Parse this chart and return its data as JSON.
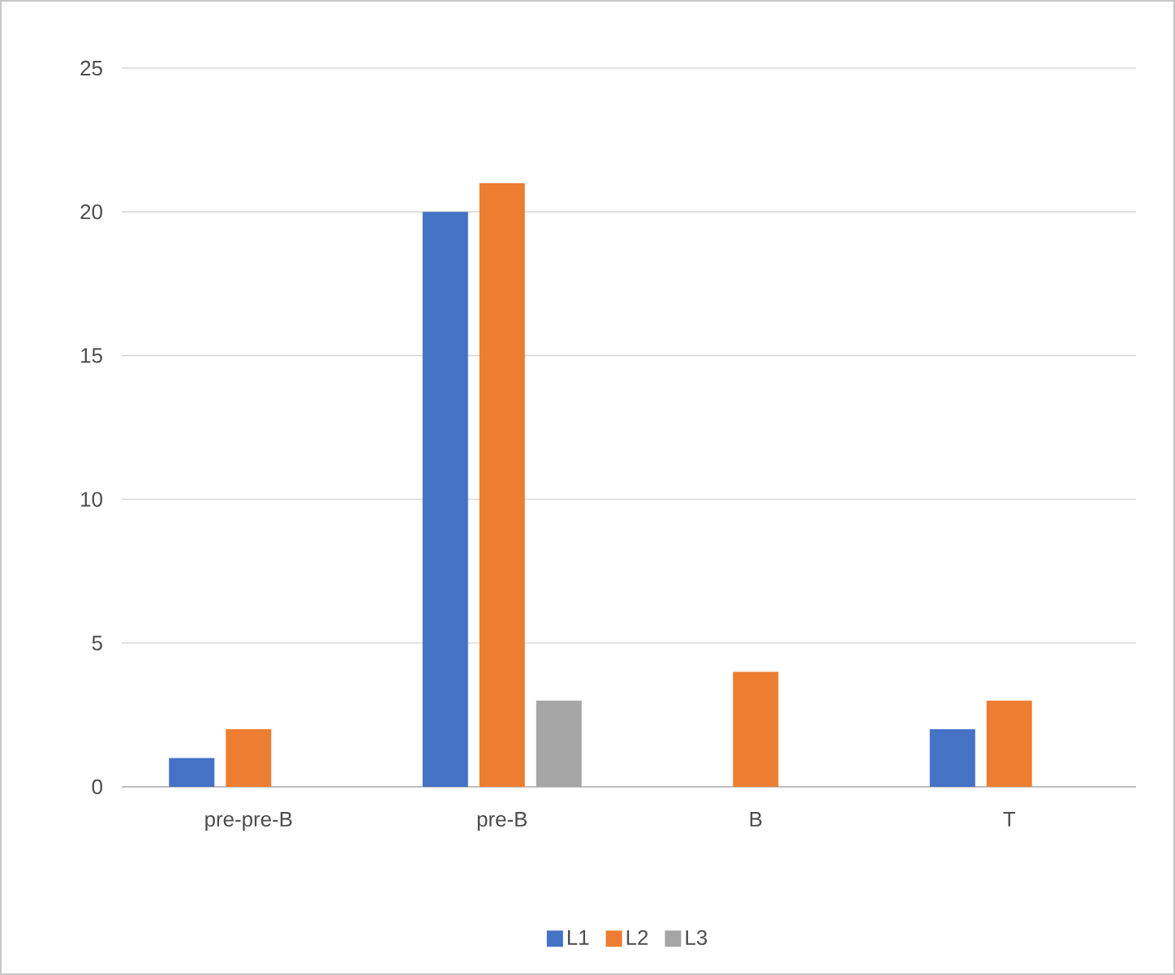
{
  "chart_data": {
    "type": "bar",
    "categories": [
      "pre-pre-B",
      "pre-B",
      "B",
      "T"
    ],
    "series": [
      {
        "name": "L1",
        "color": "#4472c4",
        "values": [
          1,
          20,
          0,
          2
        ]
      },
      {
        "name": "L2",
        "color": "#ed7d31",
        "values": [
          2,
          21,
          4,
          3
        ]
      },
      {
        "name": "L3",
        "color": "#a5a5a5",
        "values": [
          0,
          3,
          0,
          0
        ]
      }
    ],
    "ylim": [
      0,
      25
    ],
    "yticks": [
      0,
      5,
      10,
      15,
      20,
      25
    ],
    "grid": "y",
    "legend": "bottom"
  }
}
